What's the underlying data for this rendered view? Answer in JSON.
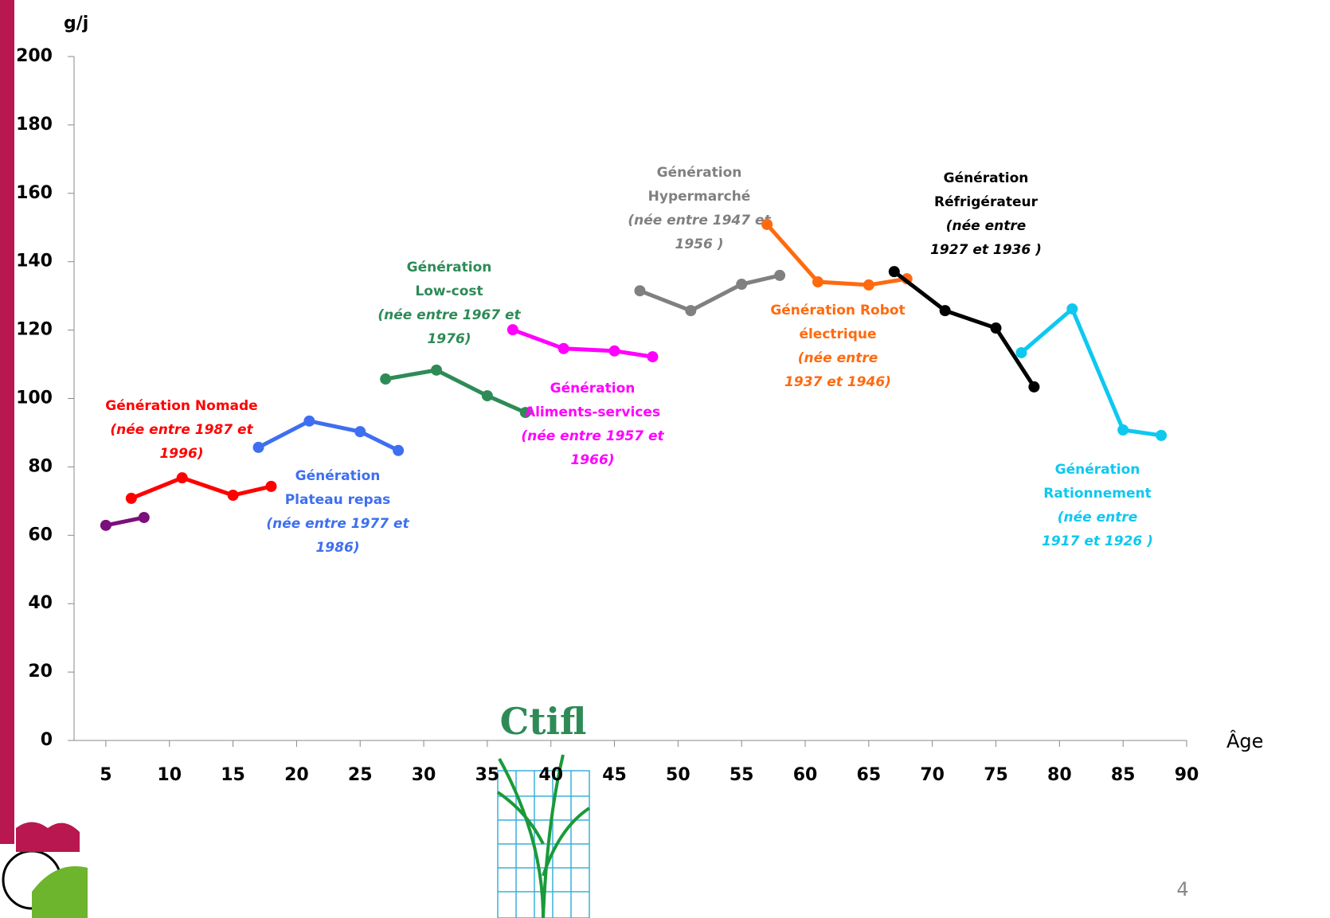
{
  "chart_data": {
    "type": "line",
    "y_label": "g/j",
    "x_label": "Âge",
    "xlim": [
      2.5,
      90
    ],
    "xticks": [
      5,
      10,
      15,
      20,
      25,
      30,
      35,
      40,
      45,
      50,
      55,
      60,
      65,
      70,
      75,
      80,
      85,
      90
    ],
    "ylim": [
      0,
      200
    ],
    "yticks": [
      0,
      20,
      40,
      60,
      80,
      100,
      120,
      140,
      160,
      180,
      200
    ],
    "series": [
      {
        "color": "#7b0f7b",
        "x": [
          5,
          8
        ],
        "values": [
          62.9,
          65.2
        ]
      },
      {
        "color": "#ff0000",
        "x": [
          7,
          11,
          15,
          18
        ],
        "values": [
          70.8,
          76.8,
          71.7,
          74.3
        ],
        "title_lines": [
          "Génération Nomade"
        ],
        "note_lines": [
          "(née entre 1987 et",
          "1996)"
        ]
      },
      {
        "color": "#3e6ff0",
        "x": [
          17,
          21,
          25,
          28
        ],
        "values": [
          85.7,
          93.4,
          90.3,
          84.8
        ],
        "title_lines": [
          "Génération",
          "Plateau repas"
        ],
        "note_lines": [
          "(née entre 1977 et",
          "1986)"
        ]
      },
      {
        "color": "#2e8b57",
        "x": [
          27,
          31,
          35,
          38
        ],
        "values": [
          105.7,
          108.3,
          100.8,
          95.9
        ],
        "title_lines": [
          "Génération",
          "Low-cost"
        ],
        "note_lines": [
          "(née entre 1967 et",
          "1976)"
        ]
      },
      {
        "color": "#ff00ff",
        "x": [
          37,
          41,
          45,
          48
        ],
        "values": [
          120.1,
          114.6,
          113.9,
          112.2
        ],
        "title_lines": [
          "Génération",
          "Aliments-services"
        ],
        "note_lines": [
          "(née entre 1957 et",
          "1966)"
        ]
      },
      {
        "color": "#808080",
        "x": [
          47,
          51,
          55,
          58
        ],
        "values": [
          131.5,
          125.7,
          133.4,
          136.0
        ],
        "title_lines": [
          "Génération",
          "Hypermarché"
        ],
        "note_lines": [
          "(née entre 1947 et",
          "1956 )"
        ]
      },
      {
        "color": "#ff6a0f",
        "x": [
          57,
          61,
          65,
          68
        ],
        "values": [
          150.9,
          134.1,
          133.2,
          135.0
        ],
        "title_lines": [
          "Génération Robot",
          "électrique"
        ],
        "note_lines": [
          "(née entre",
          "1937 et 1946)"
        ]
      },
      {
        "color": "#000000",
        "x": [
          67,
          71,
          75,
          78
        ],
        "values": [
          137.1,
          125.7,
          120.6,
          103.4
        ],
        "title_lines": [
          "Génération",
          "Réfrigérateur"
        ],
        "note_lines": [
          "(née entre",
          "1927 et 1936 )"
        ]
      },
      {
        "color": "#0ec8f0",
        "x": [
          77,
          81,
          85,
          88
        ],
        "values": [
          113.4,
          126.2,
          90.8,
          89.2
        ],
        "title_lines": [
          "Génération",
          "Rationnement"
        ],
        "note_lines": [
          "(née entre",
          "1917 et 1926 )"
        ]
      }
    ]
  },
  "logo": "Ctifl",
  "page_number": "4"
}
